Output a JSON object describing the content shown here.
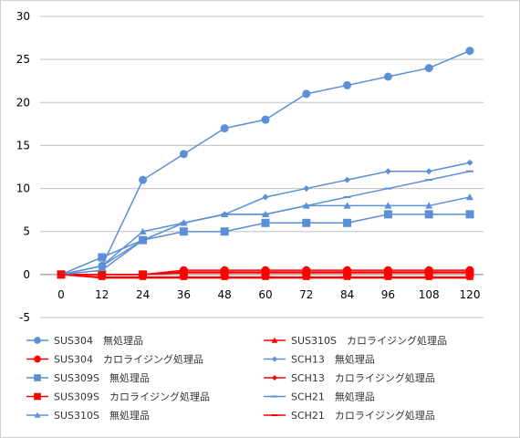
{
  "chart_data": {
    "type": "line",
    "title": "",
    "xlabel": "",
    "ylabel": "",
    "x": [
      0,
      12,
      24,
      36,
      48,
      60,
      72,
      84,
      96,
      108,
      120
    ],
    "ylim": [
      -5,
      30
    ],
    "yticks": [
      -5,
      0,
      5,
      10,
      15,
      20,
      25,
      30
    ],
    "grid": "horizontal",
    "legend_position": "bottom",
    "series": [
      {
        "name": "SUS304　無処理品",
        "color": "#5b8fd6",
        "marker": "circle",
        "values": [
          0,
          1,
          11,
          14,
          17,
          18,
          21,
          22,
          23,
          24,
          26
        ]
      },
      {
        "name": "SUS304　カロライジング処理品",
        "color": "#ff0000",
        "marker": "circle",
        "values": [
          0,
          0,
          0,
          0.5,
          0.5,
          0.5,
          0.5,
          0.5,
          0.5,
          0.5,
          0.5
        ]
      },
      {
        "name": "SUS309S　無処理品",
        "color": "#5b8fd6",
        "marker": "square",
        "values": [
          0,
          2,
          4,
          5,
          5,
          6,
          6,
          6,
          7,
          7,
          7
        ]
      },
      {
        "name": "SUS309S　カロライジング処理品",
        "color": "#ff0000",
        "marker": "square",
        "values": [
          0,
          0,
          0,
          0.2,
          0.2,
          0.2,
          0.2,
          0.2,
          0.2,
          0.2,
          0.2
        ]
      },
      {
        "name": "SUS310S　無処理品",
        "color": "#5b8fd6",
        "marker": "triangle",
        "values": [
          0,
          1,
          5,
          6,
          7,
          7,
          8,
          8,
          8,
          8,
          9
        ]
      },
      {
        "name": "SUS310S　カロライジング処理品",
        "color": "#ff0000",
        "marker": "triangle",
        "values": [
          0,
          -0.3,
          -0.3,
          -0.3,
          -0.3,
          -0.3,
          -0.3,
          -0.3,
          -0.3,
          -0.3,
          -0.3
        ]
      },
      {
        "name": "SCH13　無処理品",
        "color": "#5b8fd6",
        "marker": "diamond",
        "values": [
          0,
          1,
          4,
          6,
          7,
          9,
          10,
          11,
          12,
          12,
          13
        ]
      },
      {
        "name": "SCH13　カロライジング処理品",
        "color": "#ff0000",
        "marker": "diamond",
        "values": [
          0,
          0,
          0,
          0.3,
          0.3,
          0.3,
          0.3,
          0.3,
          0.3,
          0.3,
          0.3
        ]
      },
      {
        "name": "SCH21　無処理品",
        "color": "#5b8fd6",
        "marker": "dash",
        "values": [
          0,
          0.5,
          4,
          6,
          7,
          7,
          8,
          9,
          10,
          11,
          12
        ]
      },
      {
        "name": "SCH21　カロライジング処理品",
        "color": "#ff0000",
        "marker": "dash",
        "values": [
          0,
          -0.4,
          -0.4,
          -0.4,
          -0.4,
          -0.4,
          -0.4,
          -0.4,
          -0.4,
          -0.4,
          -0.4
        ]
      }
    ]
  }
}
